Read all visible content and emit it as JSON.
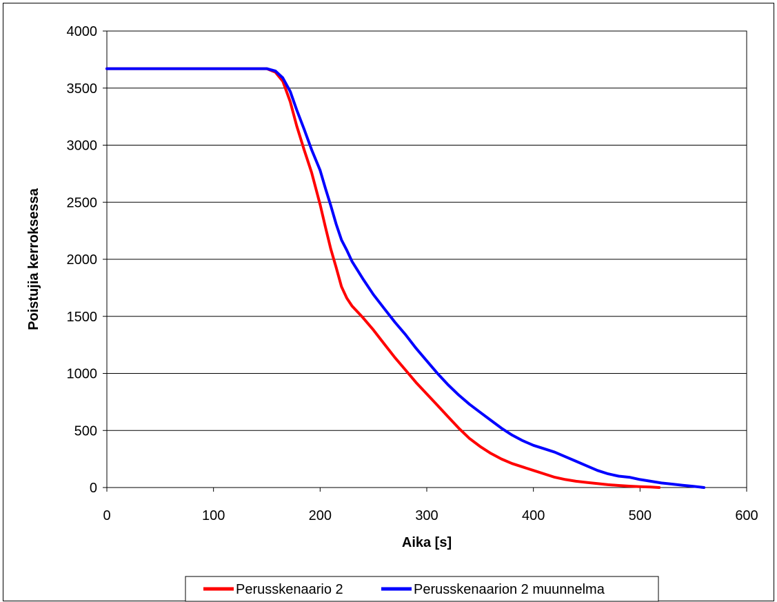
{
  "chart_data": {
    "type": "line",
    "title": "",
    "xlabel": "Aika [s]",
    "ylabel": "Poistujia kerroksessa",
    "xlim": [
      0,
      600
    ],
    "ylim": [
      0,
      4000
    ],
    "xticks": [
      0,
      100,
      200,
      300,
      400,
      500,
      600
    ],
    "yticks": [
      0,
      500,
      1000,
      1500,
      2000,
      2500,
      3000,
      3500,
      4000
    ],
    "grid": "horizontal",
    "legend_position": "bottom",
    "series": [
      {
        "name": "Perusskenaario 2",
        "color": "#ff0000",
        "x": [
          0,
          150,
          158,
          165,
          172,
          178,
          185,
          192,
          200,
          205,
          210,
          215,
          220,
          225,
          230,
          240,
          250,
          260,
          270,
          280,
          290,
          300,
          310,
          320,
          330,
          340,
          350,
          360,
          370,
          380,
          390,
          400,
          410,
          420,
          430,
          440,
          450,
          460,
          470,
          480,
          490,
          500,
          510,
          518
        ],
        "y": [
          3670,
          3670,
          3640,
          3560,
          3380,
          3170,
          2960,
          2760,
          2480,
          2280,
          2090,
          1930,
          1760,
          1660,
          1590,
          1490,
          1380,
          1260,
          1140,
          1030,
          920,
          820,
          720,
          620,
          520,
          430,
          360,
          300,
          250,
          210,
          180,
          150,
          120,
          90,
          70,
          55,
          45,
          35,
          25,
          18,
          12,
          8,
          4,
          0
        ]
      },
      {
        "name": "Perusskenaarion 2 muunnelma",
        "color": "#0000ff",
        "x": [
          0,
          150,
          158,
          165,
          172,
          178,
          185,
          192,
          200,
          205,
          210,
          215,
          220,
          225,
          230,
          240,
          250,
          260,
          270,
          280,
          290,
          300,
          310,
          320,
          330,
          340,
          350,
          360,
          370,
          380,
          390,
          400,
          410,
          420,
          430,
          440,
          450,
          460,
          470,
          480,
          490,
          500,
          510,
          520,
          530,
          540,
          550,
          560
        ],
        "y": [
          3670,
          3670,
          3650,
          3590,
          3470,
          3310,
          3140,
          2960,
          2780,
          2620,
          2470,
          2310,
          2170,
          2080,
          1980,
          1830,
          1690,
          1570,
          1450,
          1340,
          1220,
          1110,
          1000,
          900,
          810,
          730,
          660,
          590,
          520,
          460,
          410,
          370,
          340,
          310,
          270,
          230,
          190,
          150,
          120,
          100,
          90,
          70,
          55,
          40,
          30,
          20,
          10,
          0
        ]
      }
    ]
  }
}
